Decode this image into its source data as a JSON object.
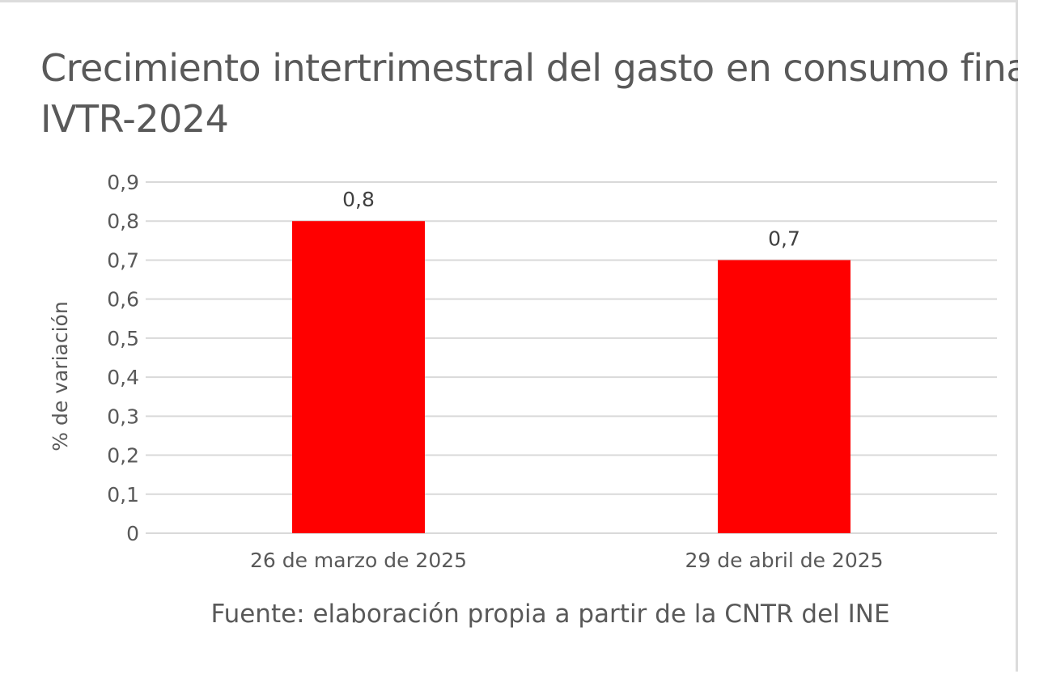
{
  "chart_data": {
    "type": "bar",
    "title": [
      "Crecimiento intertrimestral del gasto en consumo final",
      "IVTR-2024"
    ],
    "ylabel": "% de variación",
    "xlabel": "Fuente: elaboración propia a partir de la CNTR del INE",
    "categories": [
      "26 de marzo de 2025",
      "29 de abril de 2025"
    ],
    "values": [
      0.8,
      0.7
    ],
    "value_labels": [
      "0,8",
      "0,7"
    ],
    "ylim": [
      0,
      0.9
    ],
    "yticks": [
      0,
      0.1,
      0.2,
      0.3,
      0.4,
      0.5,
      0.6,
      0.7,
      0.8,
      0.9
    ],
    "ytick_labels": [
      "0",
      "0,1",
      "0,2",
      "0,3",
      "0,4",
      "0,5",
      "0,6",
      "0,7",
      "0,8",
      "0,9"
    ],
    "grid": true,
    "legend": "none",
    "bar_color": "#ff0000",
    "grid_color": "#d9d9d9",
    "text_color": "#595959"
  }
}
